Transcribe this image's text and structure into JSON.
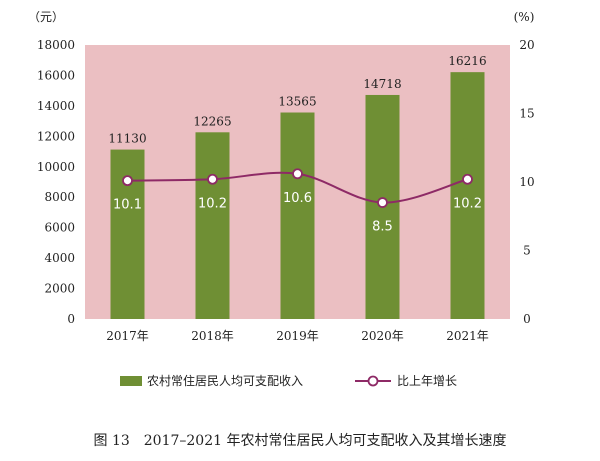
{
  "chart_data": {
    "type": "bar",
    "categories": [
      "2017年",
      "2018年",
      "2019年",
      "2020年",
      "2021年"
    ],
    "series": [
      {
        "name": "农村常住居民人均可支配收入",
        "type": "bar",
        "axis": "left",
        "values": [
          11130,
          12265,
          13565,
          14718,
          16216
        ]
      },
      {
        "name": "比上年增长",
        "type": "line",
        "axis": "right",
        "values": [
          10.1,
          10.2,
          10.6,
          8.5,
          10.2
        ]
      }
    ],
    "left_axis": {
      "unit": "（元）",
      "ylim": [
        0,
        18000
      ],
      "ticks": [
        "0",
        "2000",
        "4000",
        "6000",
        "8000",
        "10000",
        "12000",
        "14000",
        "16000",
        "18000"
      ]
    },
    "right_axis": {
      "unit": "(%)",
      "ylim": [
        0,
        20
      ],
      "ticks": [
        "0",
        "5",
        "10",
        "15",
        "20"
      ]
    },
    "bar_labels": [
      "11130",
      "12265",
      "13565",
      "14718",
      "16216"
    ],
    "line_labels": [
      "10.1",
      "10.2",
      "10.6",
      "8.5",
      "10.2"
    ],
    "legend": {
      "bar": "农村常住居民人均可支配收入",
      "line": "比上年增长"
    },
    "caption": "图 13　2017–2021 年农村常住居民人均可支配收入及其增长速度",
    "colors": {
      "plot_bg": "#ebbfc2",
      "bar": "#6f8f34",
      "line": "#8e2a66",
      "marker_fill": "#ffffff"
    }
  }
}
